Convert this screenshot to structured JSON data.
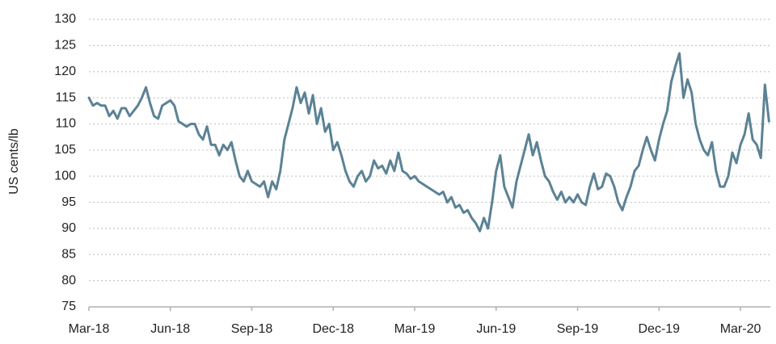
{
  "chart_data": {
    "type": "line",
    "y_label": "US cents/lb",
    "xlim": [
      0,
      25.1
    ],
    "xticks": [
      {
        "value": 0,
        "label": "Mar-18"
      },
      {
        "value": 3,
        "label": "Jun-18"
      },
      {
        "value": 6,
        "label": "Sep-18"
      },
      {
        "value": 9,
        "label": "Dec-18"
      },
      {
        "value": 12,
        "label": "Mar-19"
      },
      {
        "value": 15,
        "label": "Jun-19"
      },
      {
        "value": 18,
        "label": "Sep-19"
      },
      {
        "value": 21,
        "label": "Dec-19"
      },
      {
        "value": 24,
        "label": "Mar-20"
      }
    ],
    "ylim": [
      75,
      130
    ],
    "yticks": [
      75,
      80,
      85,
      90,
      95,
      100,
      105,
      110,
      115,
      120,
      125,
      130
    ],
    "grid": true,
    "x": [
      0,
      0.15,
      0.3,
      0.45,
      0.6,
      0.75,
      0.9,
      1.05,
      1.2,
      1.35,
      1.5,
      1.65,
      1.8,
      1.95,
      2.1,
      2.25,
      2.4,
      2.55,
      2.7,
      2.85,
      3,
      3.15,
      3.3,
      3.45,
      3.6,
      3.75,
      3.9,
      4.05,
      4.2,
      4.35,
      4.5,
      4.65,
      4.8,
      4.95,
      5.1,
      5.25,
      5.4,
      5.55,
      5.7,
      5.85,
      6,
      6.15,
      6.3,
      6.45,
      6.6,
      6.75,
      6.9,
      7.05,
      7.2,
      7.35,
      7.5,
      7.65,
      7.8,
      7.95,
      8.1,
      8.25,
      8.4,
      8.55,
      8.7,
      8.85,
      9,
      9.15,
      9.3,
      9.45,
      9.6,
      9.75,
      9.9,
      10.05,
      10.2,
      10.35,
      10.5,
      10.65,
      10.8,
      10.95,
      11.1,
      11.25,
      11.4,
      11.55,
      11.7,
      11.85,
      12,
      12.15,
      12.3,
      12.45,
      12.6,
      12.75,
      12.9,
      13.05,
      13.2,
      13.35,
      13.5,
      13.65,
      13.8,
      13.95,
      14.1,
      14.25,
      14.4,
      14.55,
      14.7,
      14.85,
      15,
      15.15,
      15.3,
      15.45,
      15.6,
      15.75,
      15.9,
      16.05,
      16.2,
      16.35,
      16.5,
      16.65,
      16.8,
      16.95,
      17.1,
      17.25,
      17.4,
      17.55,
      17.7,
      17.85,
      18,
      18.15,
      18.3,
      18.45,
      18.6,
      18.75,
      18.9,
      19.05,
      19.2,
      19.35,
      19.5,
      19.65,
      19.8,
      19.95,
      20.1,
      20.25,
      20.4,
      20.55,
      20.7,
      20.85,
      21,
      21.15,
      21.3,
      21.45,
      21.6,
      21.75,
      21.9,
      22.05,
      22.2,
      22.35,
      22.5,
      22.65,
      22.8,
      22.95,
      23.1,
      23.25,
      23.4,
      23.55,
      23.7,
      23.85,
      24,
      24.15,
      24.3,
      24.45,
      24.6,
      24.75,
      24.9,
      25.05
    ],
    "series": [
      {
        "color": "#5b8295",
        "values": [
          115,
          113.5,
          114,
          113.5,
          113.5,
          111.5,
          112.5,
          111,
          113,
          113,
          111.5,
          112.5,
          113.5,
          115,
          117,
          114,
          111.5,
          111,
          113.5,
          114,
          114.5,
          113.5,
          110.5,
          110,
          109.5,
          110,
          110,
          108,
          107,
          109.5,
          106,
          106,
          104,
          106,
          105,
          106.5,
          103,
          100,
          99,
          101,
          99,
          98.5,
          98,
          99,
          96,
          99,
          97.5,
          101,
          107,
          110,
          113,
          117,
          114,
          116,
          112,
          115.5,
          110,
          113,
          108.5,
          110,
          105,
          106.5,
          104,
          101,
          99,
          98,
          100,
          101,
          99,
          100,
          103,
          101.5,
          102,
          100.5,
          103,
          101,
          104.5,
          101,
          100.5,
          99.5,
          100,
          99,
          98.5,
          98,
          97.5,
          97,
          96.5,
          97,
          95,
          96,
          94,
          94.5,
          93,
          93.5,
          92,
          91,
          89.5,
          92,
          90,
          95,
          101,
          104,
          98,
          96,
          94,
          99,
          102,
          105,
          108,
          104,
          106.5,
          103,
          100,
          99,
          97,
          95.5,
          97,
          95,
          96,
          95,
          96.5,
          95,
          94.5,
          98,
          100.5,
          97.5,
          98,
          100.5,
          100,
          98,
          95,
          93.5,
          96,
          98,
          101,
          102,
          105,
          107.5,
          105,
          103,
          107,
          110,
          112.5,
          118,
          121,
          123.5,
          115,
          118.5,
          116,
          110,
          107,
          105,
          104,
          106.5,
          101,
          98,
          98,
          100,
          104.5,
          102.5,
          106,
          108,
          112,
          107,
          106,
          103.5,
          117.5,
          110.5
        ]
      }
    ]
  }
}
